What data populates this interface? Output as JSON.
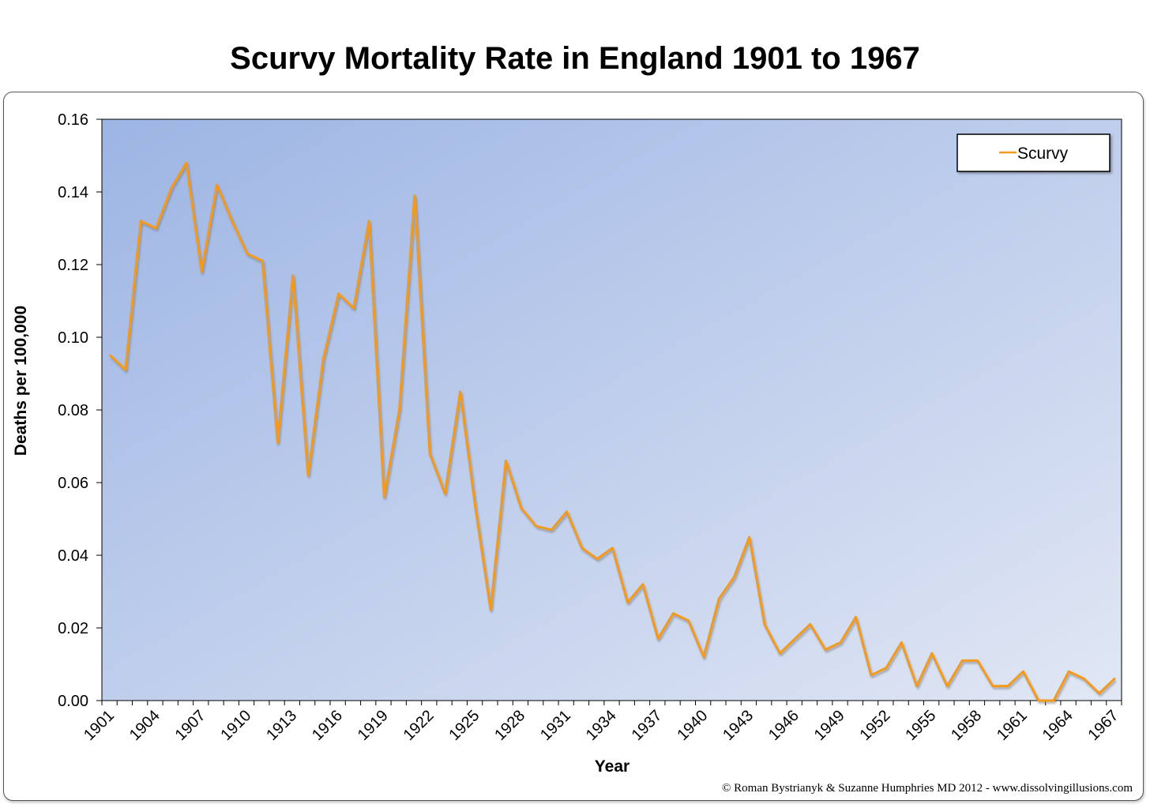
{
  "chart_data": {
    "type": "line",
    "title": "Scurvy Mortality Rate in England 1901 to 1967",
    "xlabel": "Year",
    "ylabel": "Deaths per 100,000",
    "ylim": [
      0,
      0.16
    ],
    "yticks": [
      "0.00",
      "0.02",
      "0.04",
      "0.06",
      "0.08",
      "0.10",
      "0.12",
      "0.14",
      "0.16"
    ],
    "xticks": [
      "1901",
      "1904",
      "1907",
      "1910",
      "1913",
      "1916",
      "1919",
      "1922",
      "1925",
      "1928",
      "1931",
      "1934",
      "1937",
      "1940",
      "1943",
      "1946",
      "1949",
      "1952",
      "1955",
      "1958",
      "1961",
      "1964",
      "1967"
    ],
    "legend": "top-right",
    "grid": false,
    "series": [
      {
        "name": "Scurvy",
        "color": "#f39a1e",
        "x": [
          1901,
          1902,
          1903,
          1904,
          1905,
          1906,
          1907,
          1908,
          1909,
          1910,
          1911,
          1912,
          1913,
          1914,
          1915,
          1916,
          1917,
          1918,
          1919,
          1920,
          1921,
          1922,
          1923,
          1924,
          1925,
          1926,
          1927,
          1928,
          1929,
          1930,
          1931,
          1932,
          1933,
          1934,
          1935,
          1936,
          1937,
          1938,
          1939,
          1940,
          1941,
          1942,
          1943,
          1944,
          1945,
          1946,
          1947,
          1948,
          1949,
          1950,
          1951,
          1952,
          1953,
          1954,
          1955,
          1956,
          1957,
          1958,
          1959,
          1960,
          1961,
          1962,
          1963,
          1964,
          1965,
          1966,
          1967
        ],
        "values": [
          0.095,
          0.091,
          0.132,
          0.13,
          0.141,
          0.148,
          0.118,
          0.142,
          0.132,
          0.123,
          0.121,
          0.071,
          0.117,
          0.062,
          0.094,
          0.112,
          0.108,
          0.132,
          0.056,
          0.08,
          0.139,
          0.068,
          0.057,
          0.085,
          0.053,
          0.025,
          0.066,
          0.053,
          0.048,
          0.047,
          0.052,
          0.042,
          0.039,
          0.042,
          0.027,
          0.032,
          0.017,
          0.024,
          0.022,
          0.012,
          0.028,
          0.034,
          0.045,
          0.021,
          0.013,
          0.017,
          0.021,
          0.014,
          0.016,
          0.023,
          0.007,
          0.009,
          0.016,
          0.004,
          0.013,
          0.004,
          0.011,
          0.011,
          0.004,
          0.004,
          0.008,
          0.0,
          0.0,
          0.008,
          0.006,
          0.002,
          0.006
        ]
      }
    ]
  },
  "copyright": "© Roman Bystrianyk & Suzanne Humphries MD 2012 - www.dissolvingillusions.com",
  "colors": {
    "plot_bg_start": "#9db5e4",
    "plot_bg_end": "#e1e7f4",
    "line": "#f39a1e",
    "line_shadow": "#8a8a8a"
  }
}
